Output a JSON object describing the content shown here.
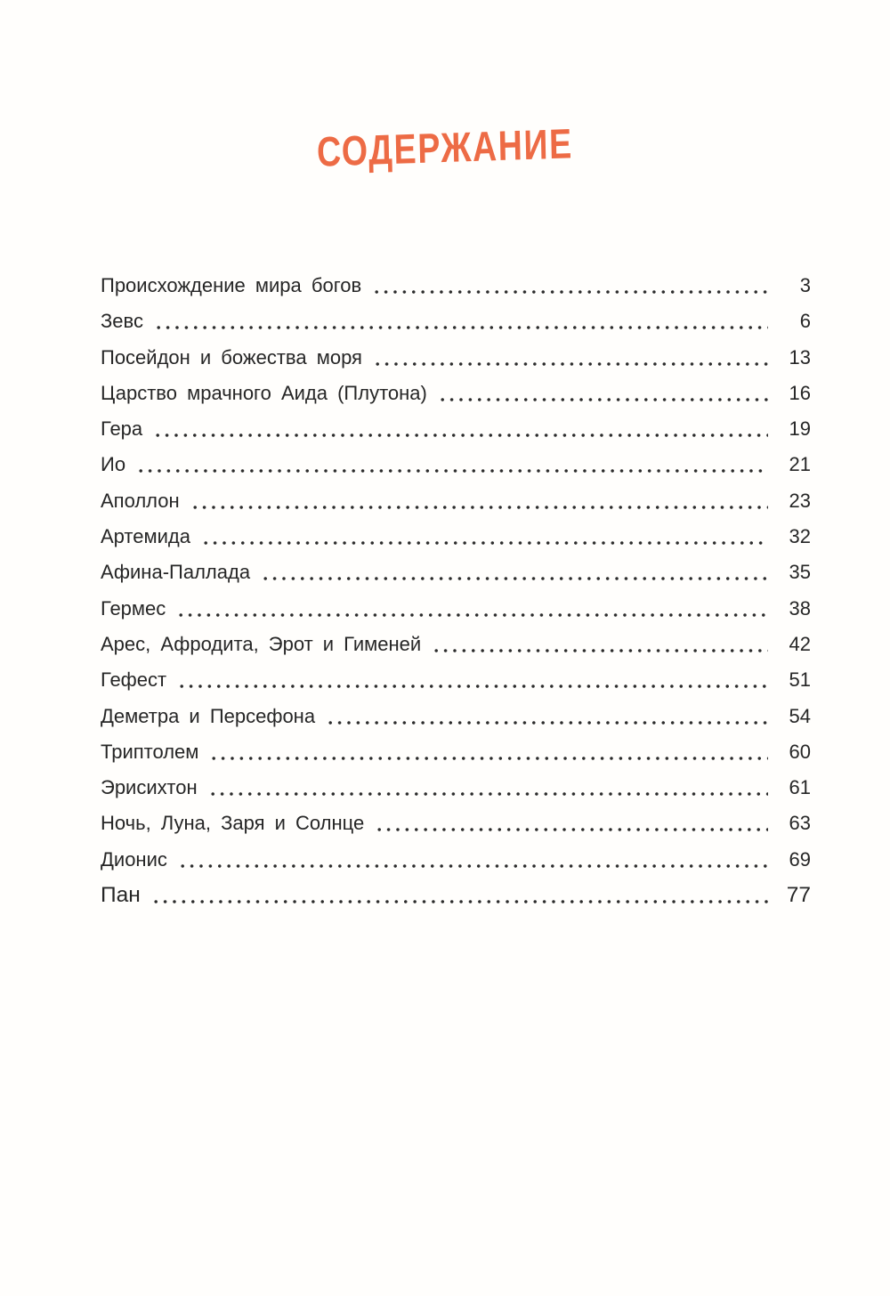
{
  "page": {
    "title": "СОДЕРЖАНИЕ",
    "title_color": "#ED6B45",
    "background_color": "#FFFEFC",
    "text_color": "#262626"
  },
  "toc": {
    "items": [
      {
        "label": "Происхождение мира богов",
        "page": "3"
      },
      {
        "label": "Зевс",
        "page": "6"
      },
      {
        "label": "Посейдон и божества моря",
        "page": "13"
      },
      {
        "label": "Царство мрачного Аида (Плутона)",
        "page": "16"
      },
      {
        "label": "Гера",
        "page": "19"
      },
      {
        "label": "Ио",
        "page": "21"
      },
      {
        "label": "Аполлон",
        "page": "23"
      },
      {
        "label": "Артемида",
        "page": "32"
      },
      {
        "label": "Афина-Паллада",
        "page": "35"
      },
      {
        "label": "Гермес",
        "page": "38"
      },
      {
        "label": "Арес, Афродита, Эрот и Гименей",
        "page": "42"
      },
      {
        "label": "Гефест",
        "page": "51"
      },
      {
        "label": "Деметра и Персефона",
        "page": "54"
      },
      {
        "label": "Триптолем",
        "page": "60"
      },
      {
        "label": "Эрисихтон",
        "page": "61"
      },
      {
        "label": "Ночь, Луна, Заря и Солнце",
        "page": "63"
      },
      {
        "label": "Дионис",
        "page": "69"
      },
      {
        "label": "Пан",
        "page": "77"
      }
    ]
  }
}
